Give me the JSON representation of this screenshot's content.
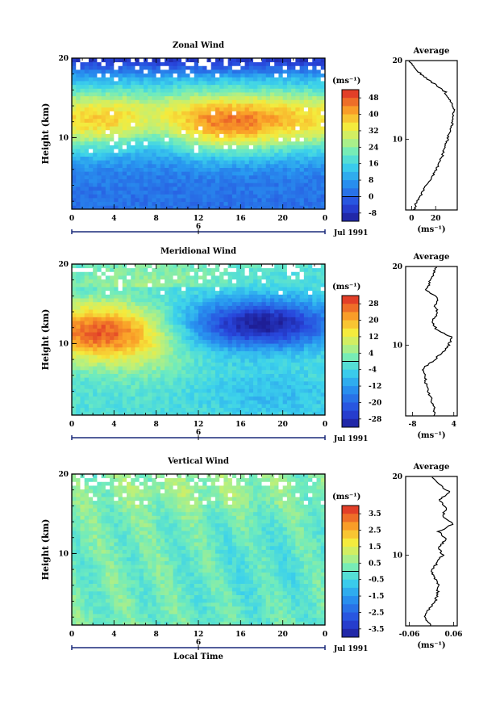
{
  "figure": {
    "time_axis_label": "Local Time",
    "time_ticks": [
      "0",
      "4",
      "8",
      "12",
      "16",
      "20",
      "0"
    ],
    "day_label": "6",
    "month_label": "Jul 1991",
    "height_axis_label": "Height (km)",
    "height_ticks": [
      "10",
      "20"
    ],
    "unit_label": "(ms⁻¹)"
  },
  "chart_data": [
    {
      "type": "heatmap",
      "title": "Zonal Wind",
      "xlabel": "",
      "ylabel": "Height (km)",
      "x_range_hours": [
        0,
        24
      ],
      "y_range_km": [
        1,
        20
      ],
      "colorbar": {
        "label": "(ms⁻¹)",
        "ticks": [
          48,
          40,
          32,
          24,
          16,
          8,
          0,
          -8
        ],
        "range": [
          -12,
          52
        ]
      },
      "average_profile": {
        "title": "Average",
        "x_ticks": [
          "0",
          "20"
        ],
        "xlabel": "(ms⁻¹)",
        "height_km": [
          1,
          2,
          4,
          6,
          8,
          10,
          12,
          14,
          16,
          18,
          19,
          20
        ],
        "values": [
          2,
          4,
          12,
          20,
          26,
          30,
          34,
          35,
          28,
          10,
          2,
          -2
        ]
      }
    },
    {
      "type": "heatmap",
      "title": "Meridional Wind",
      "xlabel": "",
      "ylabel": "Height (km)",
      "x_range_hours": [
        0,
        24
      ],
      "y_range_km": [
        1,
        20
      ],
      "colorbar": {
        "label": "(ms⁻¹)",
        "ticks": [
          28,
          20,
          12,
          4,
          -4,
          -12,
          -20,
          -28
        ],
        "range": [
          -32,
          32
        ]
      },
      "average_profile": {
        "title": "Average",
        "x_ticks": [
          "-8",
          "4"
        ],
        "xlabel": "(ms⁻¹)",
        "height_km": [
          1,
          2,
          3,
          5,
          7,
          8,
          9,
          10,
          11,
          12,
          13,
          14,
          15,
          16,
          17,
          18,
          19,
          20
        ],
        "values": [
          -2,
          -1.5,
          -2.5,
          -4,
          -5,
          -2,
          0.5,
          2.5,
          3.5,
          -1,
          -2.5,
          -0.5,
          -1.5,
          -0.5,
          -4,
          -3,
          -2,
          -1
        ]
      }
    },
    {
      "type": "heatmap",
      "title": "Vertical Wind",
      "xlabel": "Local Time",
      "ylabel": "Height (km)",
      "x_range_hours": [
        0,
        24
      ],
      "y_range_km": [
        1,
        20
      ],
      "colorbar": {
        "label": "(ms⁻¹)",
        "ticks": [
          3.5,
          2.5,
          1.5,
          0.5,
          -0.5,
          -1.5,
          -2.5,
          -3.5
        ],
        "range": [
          -4,
          4
        ]
      },
      "average_profile": {
        "title": "Average",
        "x_ticks": [
          "-0.06",
          "0.06"
        ],
        "xlabel": "(ms⁻¹)",
        "height_km": [
          1,
          2,
          3,
          4,
          6,
          8,
          10,
          11,
          12,
          13,
          14,
          15,
          16,
          17,
          18,
          19,
          20
        ],
        "values": [
          0.0,
          -0.02,
          -0.01,
          0.01,
          0.02,
          0.0,
          0.03,
          0.02,
          0.04,
          0.02,
          0.06,
          0.03,
          0.04,
          0.02,
          0.05,
          0.02,
          0.0
        ]
      }
    }
  ]
}
